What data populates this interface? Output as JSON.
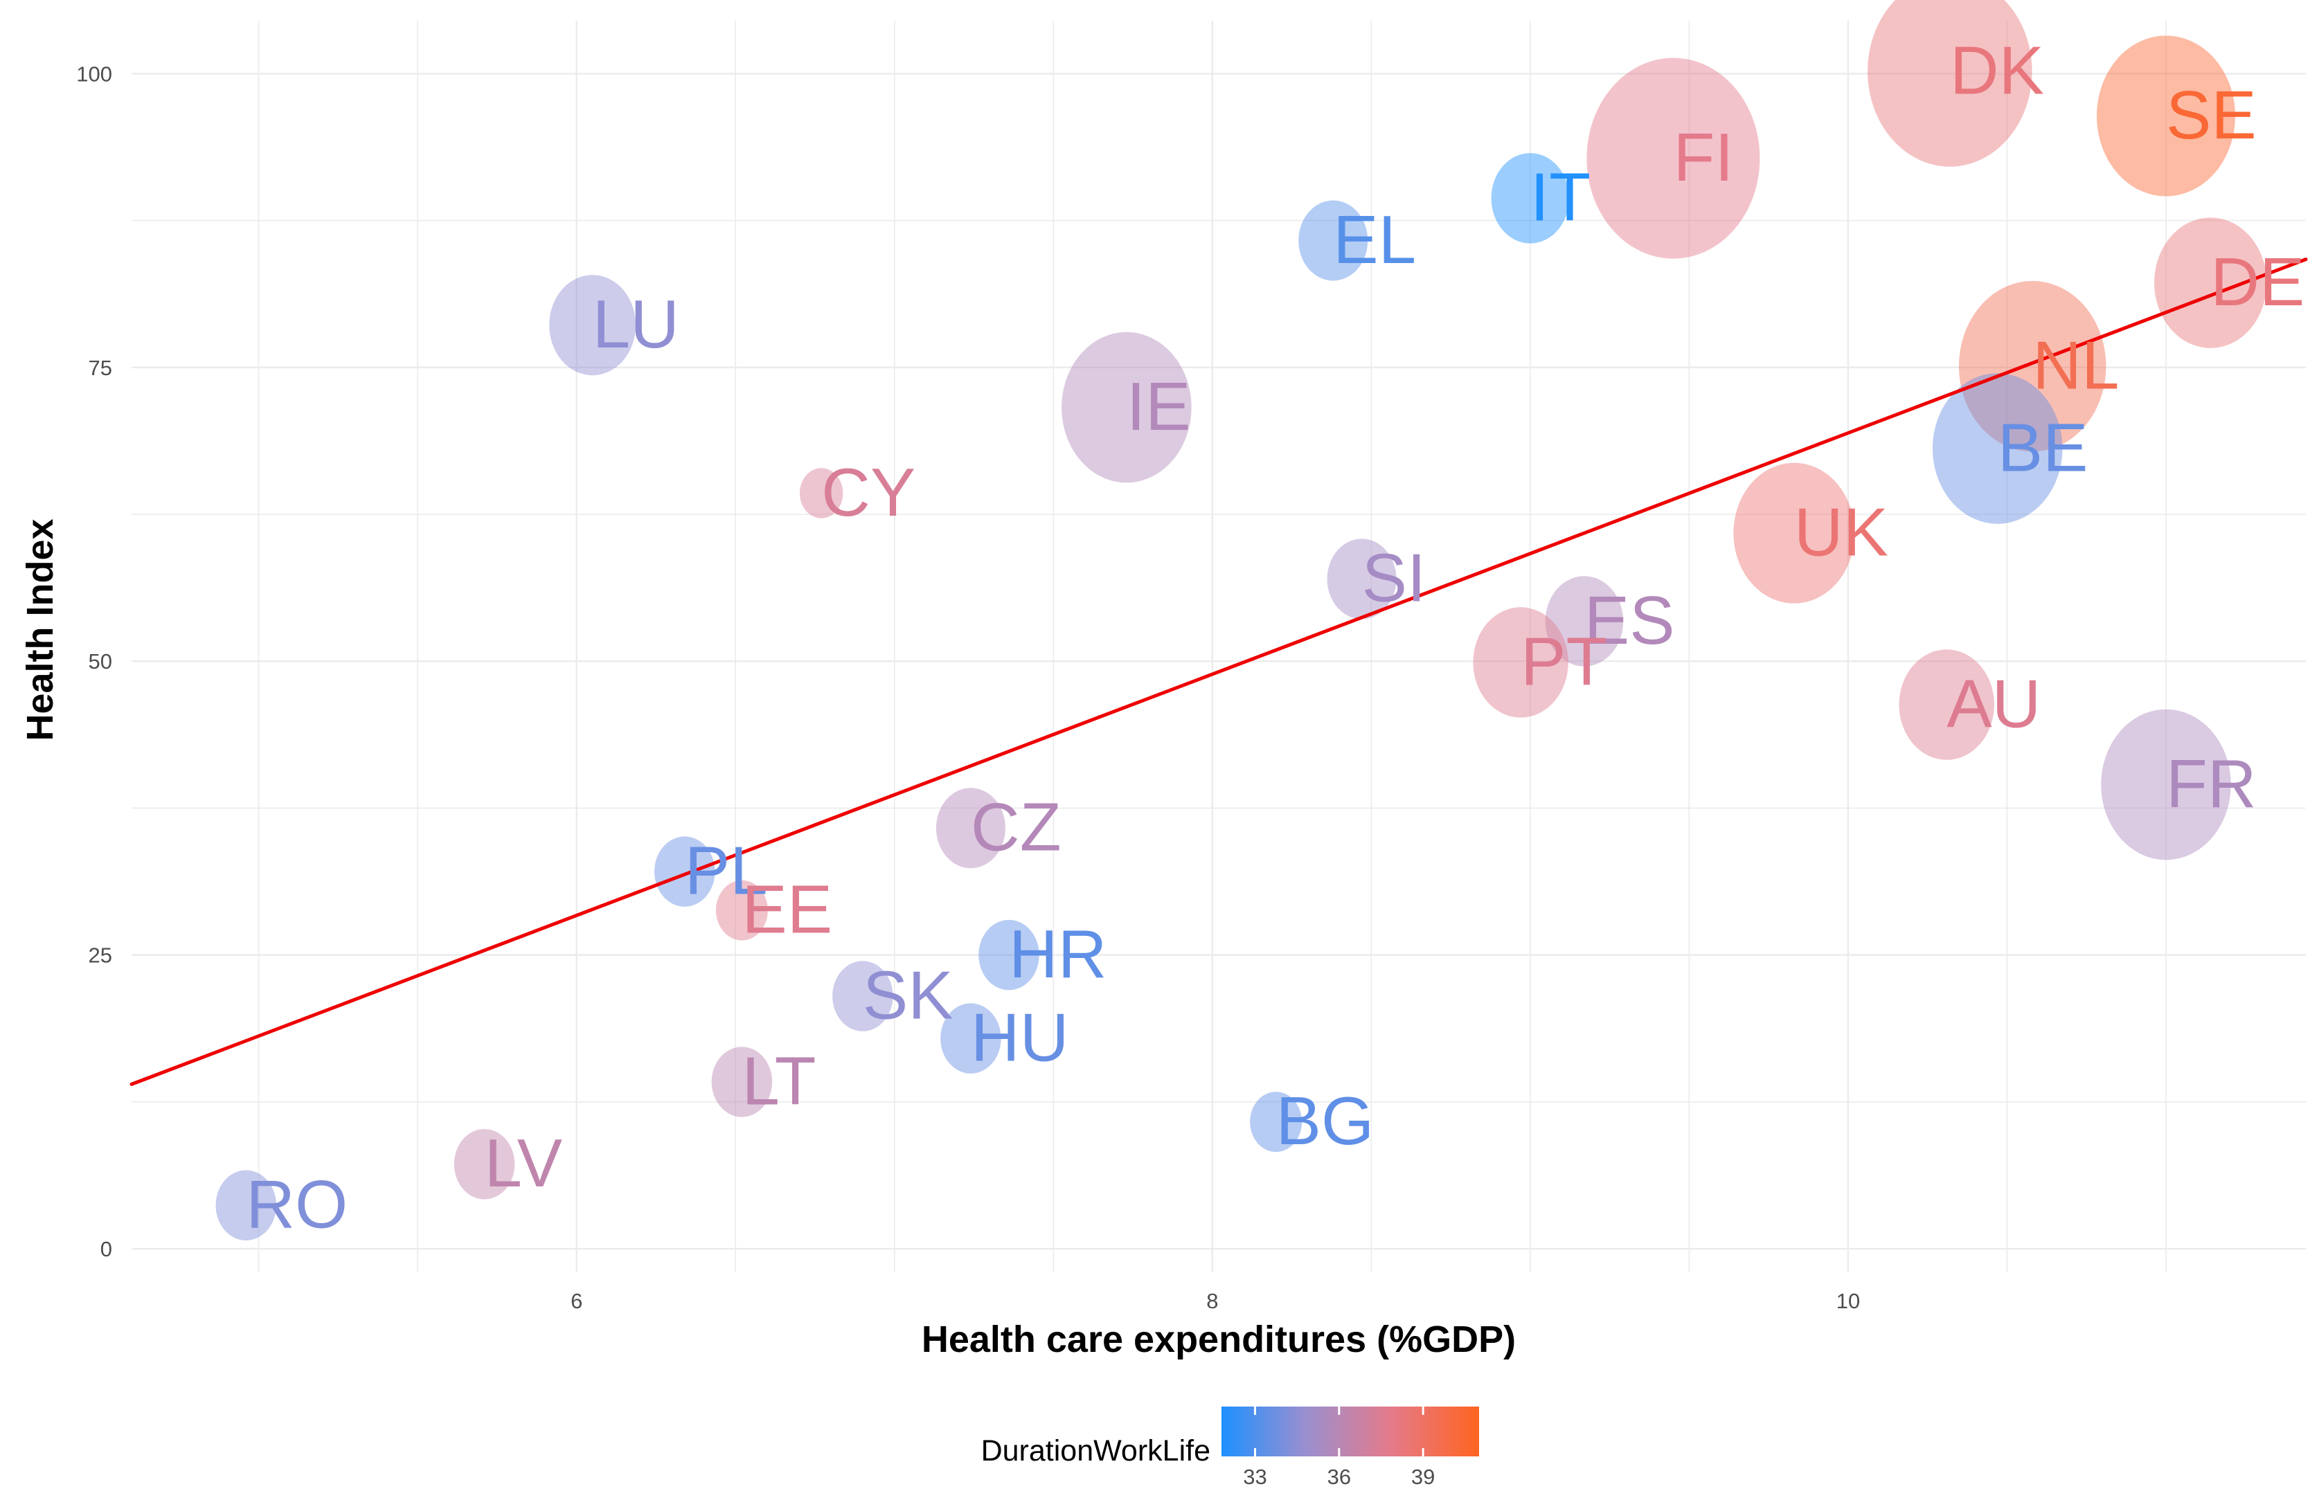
{
  "chart_data": {
    "type": "scatter",
    "title": "",
    "xlabel": "Health care expenditures (%GDP)",
    "ylabel": "Health Index",
    "xlim": [
      4.6,
      11.44
    ],
    "ylim": [
      -2,
      104.5
    ],
    "xticks": [
      6,
      8,
      10
    ],
    "yticks": [
      0,
      25,
      50,
      75,
      100
    ],
    "grid": true,
    "trend_line": {
      "color": "#ee0000",
      "x": [
        4.6,
        11.44
      ],
      "y": [
        14,
        84.2
      ]
    },
    "size_encoding": "relative bubble size (unlabelled)",
    "legend": {
      "title": "DurationWorkLife",
      "placement": "bottom",
      "ticks": [
        33,
        36,
        39
      ],
      "range": [
        31.8,
        41
      ],
      "colors": [
        "#1e90ff",
        "#9b8fcf",
        "#e57a8a",
        "#ff6420"
      ]
    },
    "points": [
      {
        "label": "DK",
        "x": 10.32,
        "y": 100.2,
        "size": 9.5,
        "dwl": 38.3
      },
      {
        "label": "SE",
        "x": 11.0,
        "y": 96.4,
        "size": 8.0,
        "dwl": 40.4
      },
      {
        "label": "FI",
        "x": 9.45,
        "y": 92.8,
        "size": 10.0,
        "dwl": 37.9
      },
      {
        "label": "IT",
        "x": 9.0,
        "y": 89.4,
        "size": 4.5,
        "dwl": 31.9
      },
      {
        "label": "EL",
        "x": 8.38,
        "y": 85.8,
        "size": 4.0,
        "dwl": 33.2
      },
      {
        "label": "DE",
        "x": 11.14,
        "y": 82.2,
        "size": 6.5,
        "dwl": 38.3
      },
      {
        "label": "LU",
        "x": 6.05,
        "y": 78.6,
        "size": 5.0,
        "dwl": 34.6
      },
      {
        "label": "NL",
        "x": 10.58,
        "y": 75.1,
        "size": 8.5,
        "dwl": 39.5
      },
      {
        "label": "IE",
        "x": 7.73,
        "y": 71.6,
        "size": 7.5,
        "dwl": 35.8
      },
      {
        "label": "BE",
        "x": 10.47,
        "y": 68.1,
        "size": 7.5,
        "dwl": 33.6
      },
      {
        "label": "CY",
        "x": 6.77,
        "y": 64.3,
        "size": 2.5,
        "dwl": 37.4
      },
      {
        "label": "UK",
        "x": 9.83,
        "y": 60.9,
        "size": 7.0,
        "dwl": 38.6
      },
      {
        "label": "SI",
        "x": 8.47,
        "y": 57.0,
        "size": 4.0,
        "dwl": 35.3
      },
      {
        "label": "ES",
        "x": 9.17,
        "y": 53.4,
        "size": 4.5,
        "dwl": 35.8
      },
      {
        "label": "PT",
        "x": 8.97,
        "y": 49.9,
        "size": 5.5,
        "dwl": 37.6
      },
      {
        "label": "AU",
        "x": 10.31,
        "y": 46.3,
        "size": 5.5,
        "dwl": 37.6
      },
      {
        "label": "FR",
        "x": 11.0,
        "y": 39.5,
        "size": 7.5,
        "dwl": 35.6
      },
      {
        "label": "CZ",
        "x": 7.24,
        "y": 35.8,
        "size": 4.0,
        "dwl": 35.9
      },
      {
        "label": "PL",
        "x": 6.34,
        "y": 32.1,
        "size": 3.5,
        "dwl": 33.6
      },
      {
        "label": "EE",
        "x": 6.52,
        "y": 28.8,
        "size": 3.0,
        "dwl": 37.7
      },
      {
        "label": "HR",
        "x": 7.36,
        "y": 25.0,
        "size": 3.5,
        "dwl": 33.4
      },
      {
        "label": "SK",
        "x": 6.9,
        "y": 21.5,
        "size": 3.5,
        "dwl": 34.6
      },
      {
        "label": "HU",
        "x": 7.24,
        "y": 17.9,
        "size": 3.5,
        "dwl": 33.6
      },
      {
        "label": "LT",
        "x": 6.52,
        "y": 14.2,
        "size": 3.5,
        "dwl": 36.2
      },
      {
        "label": "BG",
        "x": 8.2,
        "y": 10.8,
        "size": 3.0,
        "dwl": 33.4
      },
      {
        "label": "LV",
        "x": 5.71,
        "y": 7.2,
        "size": 3.5,
        "dwl": 36.4
      },
      {
        "label": "RO",
        "x": 4.96,
        "y": 3.7,
        "size": 3.5,
        "dwl": 34.2
      }
    ]
  }
}
